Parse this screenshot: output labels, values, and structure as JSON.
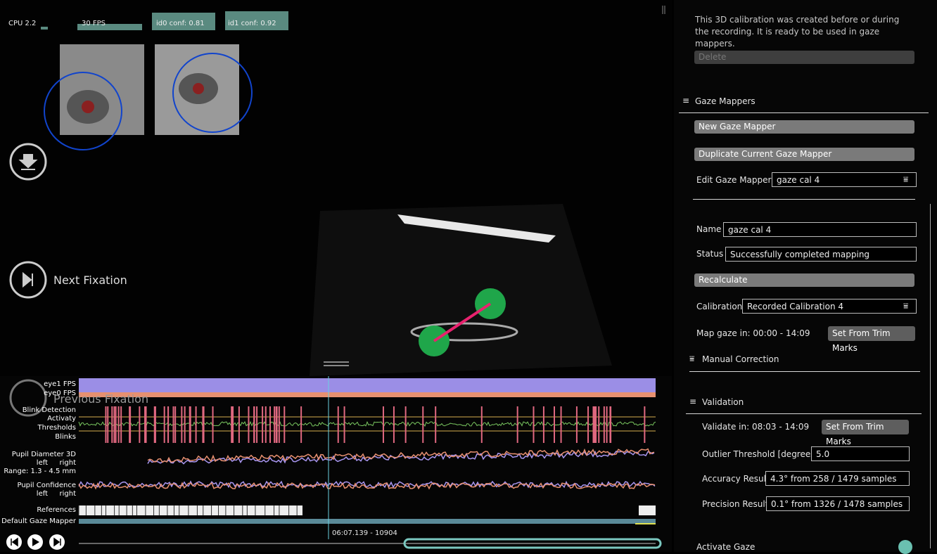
{
  "stats": {
    "cpu": "CPU 2.2",
    "fps": "30 FPS",
    "id0": "id0 conf: 0.81",
    "id1": "id1 conf: 0.92"
  },
  "seek": {
    "next": "Next Fixation",
    "previous": "Previous Fixation"
  },
  "timeline": {
    "eye_fps": [
      "eye1 FPS",
      "eye0 FPS"
    ],
    "blink": [
      "Blink Detection",
      "Activaty",
      "Thresholds",
      "Blinks"
    ],
    "pupil_diameter": {
      "title": "Pupil Diameter 3D",
      "left": "left",
      "right": "right",
      "range": "Range: 1.3 - 4.5 mm"
    },
    "pupil_confidence": {
      "title": "Pupil Confidence",
      "left": "left",
      "right": "right"
    },
    "references": "References",
    "gaze_mapper": "Default Gaze Mapper",
    "time": "06:07.139 - 10904"
  },
  "sidebar": {
    "description": "This 3D calibration was created before or during the recording. It is ready to be used in gaze mappers.",
    "delete": "Delete",
    "gaze_mappers": "Gaze Mappers",
    "new_mapper": "New Gaze Mapper",
    "duplicate": "Duplicate Current Gaze Mapper",
    "edit_label": "Edit Gaze Mapper:",
    "edit_value": "gaze cal 4",
    "name_label": "Name",
    "name_value": "gaze cal 4",
    "status_label": "Status",
    "status_value": "Successfully completed mapping",
    "recalculate": "Recalculate",
    "calibration_label": "Calibration",
    "calibration_value": "Recorded Calibration 4",
    "map_gaze": "Map gaze in: 00:00 - 14:09",
    "trim_1": "Set From Trim Marks",
    "manual_correction": "Manual Correction",
    "validation": "Validation",
    "validate_in": "Validate in: 08:03 - 14:09",
    "trim_2": "Set From Trim Marks",
    "outlier_label": "Outlier Threshold [degrees]",
    "outlier_value": "5.0",
    "accuracy_label": "Accuracy Result",
    "accuracy_value": "4.3° from 258 / 1479 samples",
    "precision_label": "Precision Result",
    "precision_value": "0.1° from 1326 / 1478 samples",
    "activate_gaze": "Activate Gaze"
  }
}
